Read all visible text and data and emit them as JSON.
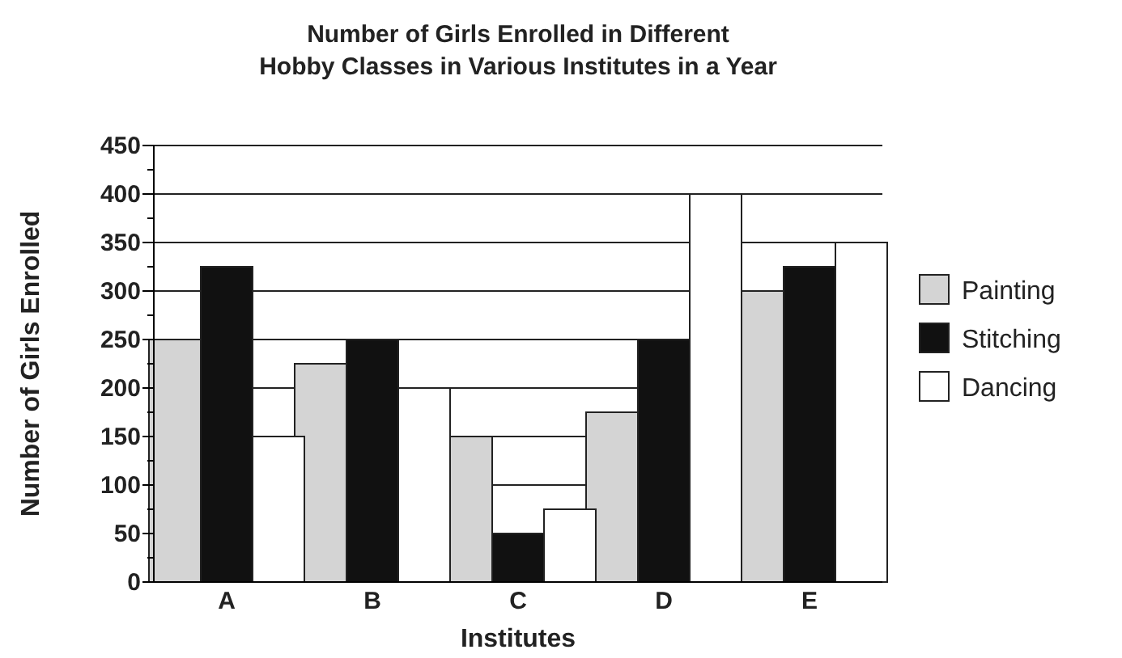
{
  "chart_data": {
    "type": "bar",
    "title": "Number of Girls Enrolled in Different\nHobby Classes in Various Institutes in a Year",
    "xlabel": "Institutes",
    "ylabel": "Number of Girls Enrolled",
    "categories": [
      "A",
      "B",
      "C",
      "D",
      "E"
    ],
    "series": [
      {
        "name": "Painting",
        "color": "#d4d4d4",
        "values": [
          250,
          225,
          150,
          175,
          300
        ]
      },
      {
        "name": "Stitching",
        "color": "#111111",
        "values": [
          325,
          250,
          50,
          250,
          325
        ]
      },
      {
        "name": "Dancing",
        "color": "#ffffff",
        "values": [
          150,
          200,
          75,
          400,
          350
        ]
      }
    ],
    "ylim": [
      0,
      450
    ],
    "yticks": [
      0,
      {
        "value": 25,
        "label": null
      },
      50,
      {
        "value": 75,
        "label": null
      },
      100,
      {
        "value": 125,
        "label": null
      },
      150,
      {
        "value": 175,
        "label": null
      },
      200,
      {
        "value": 225,
        "label": null
      },
      250,
      {
        "value": 275,
        "label": null
      },
      300,
      {
        "value": 325,
        "label": null
      },
      350,
      {
        "value": 375,
        "label": null
      },
      400,
      {
        "value": 425,
        "label": null
      },
      450
    ],
    "grid": "y",
    "legend": "right"
  }
}
